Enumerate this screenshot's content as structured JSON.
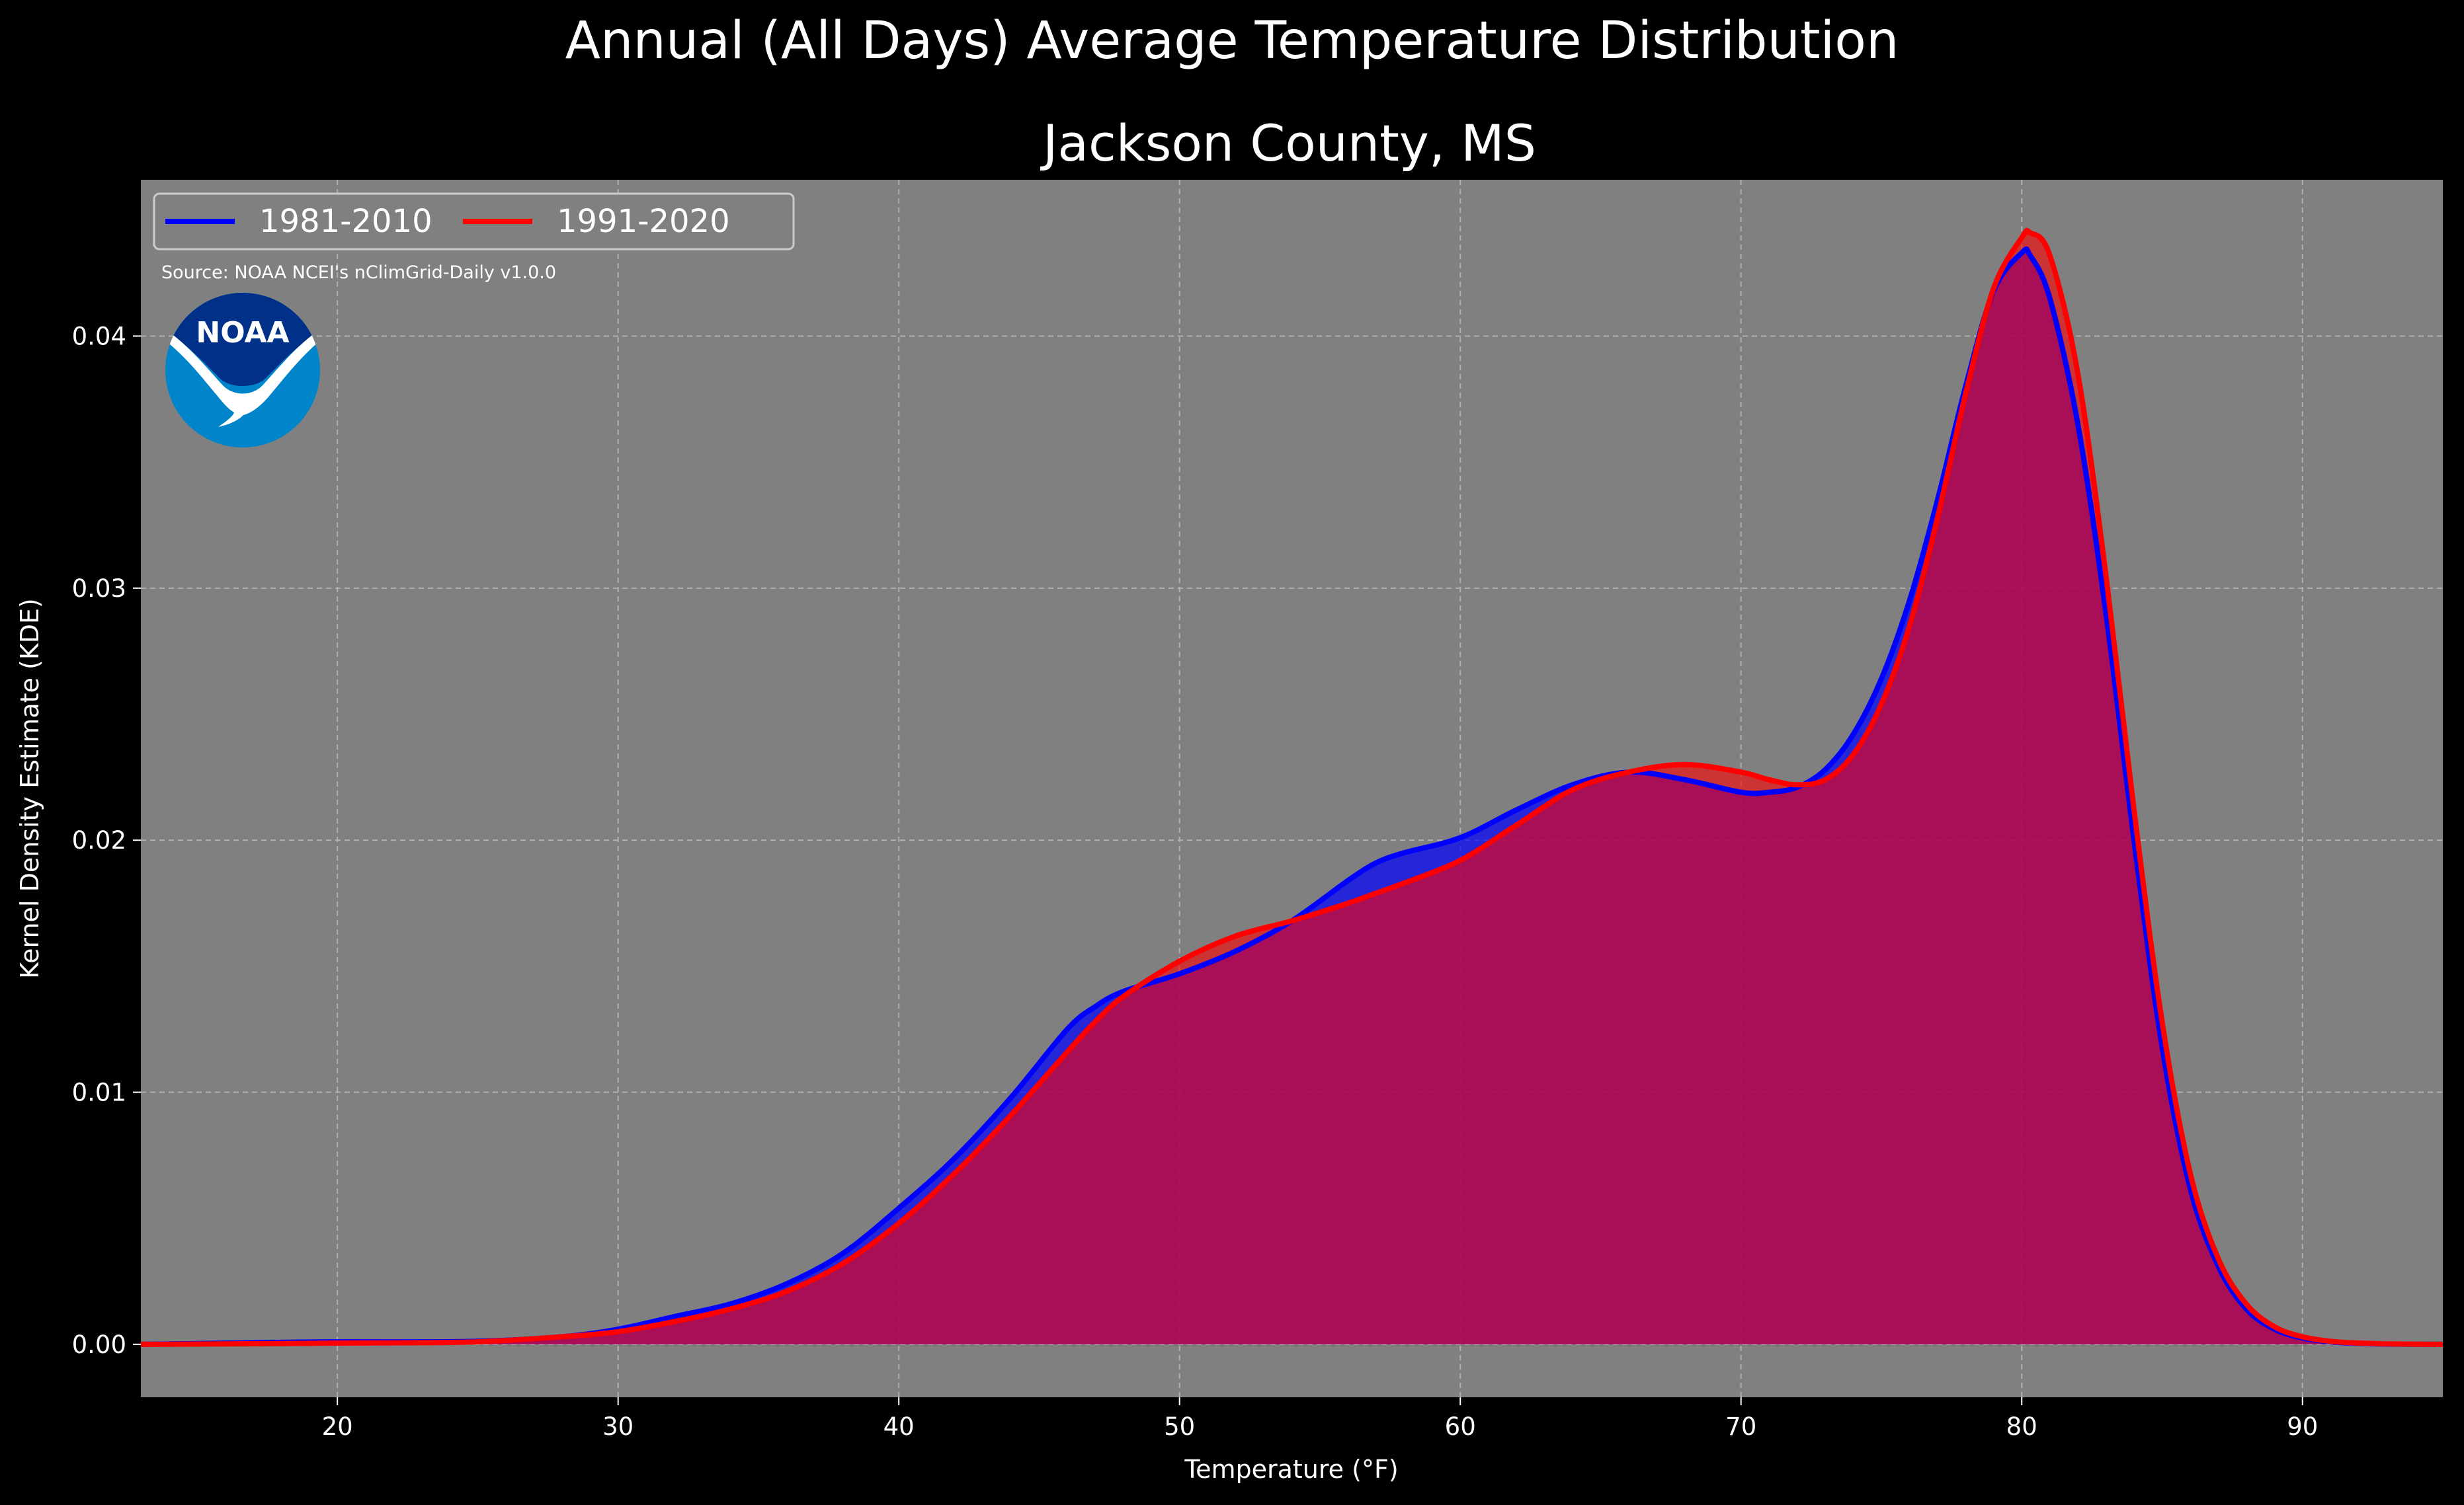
{
  "title": "Annual (All Days) Average Temperature Distribution",
  "subtitle": "Jackson County, MS",
  "source": "Source: NOAA NCEI's nClimGrid-Daily v1.0.0",
  "logo_text": "NOAA",
  "colors": {
    "background": "#000000",
    "plot_bg": "#808080",
    "series_1981": "#0000ff",
    "series_1991": "#ff0000",
    "overlap_fill": "#9e1e5f",
    "logo_blue": "#0085ca",
    "logo_navy": "#003087"
  },
  "chart_data": {
    "type": "area",
    "title": "Annual (All Days) Average Temperature Distribution",
    "subtitle": "Jackson County, MS",
    "xlabel": "Temperature (°F)",
    "ylabel": "Kernel Density Estimate (KDE)",
    "xlim": [
      13,
      95
    ],
    "ylim": [
      -0.0021,
      0.0462
    ],
    "xticks": [
      20,
      30,
      40,
      50,
      60,
      70,
      80,
      90
    ],
    "yticks": [
      0.0,
      0.01,
      0.02,
      0.03,
      0.04
    ],
    "xtick_labels": [
      "20",
      "30",
      "40",
      "50",
      "60",
      "70",
      "80",
      "90"
    ],
    "ytick_labels": [
      "0.00",
      "0.01",
      "0.02",
      "0.03",
      "0.04"
    ],
    "grid": true,
    "legend_position": "top-left",
    "series": [
      {
        "name": "1981-2010",
        "color": "#0000ff",
        "x": [
          13,
          15,
          18,
          20,
          22,
          25,
          28,
          30,
          32,
          34,
          36,
          38,
          40,
          42,
          44,
          46,
          47,
          48,
          50,
          52,
          54,
          56,
          57,
          58,
          60,
          62,
          64,
          66,
          68,
          70,
          71,
          72,
          73,
          74,
          75,
          76,
          77,
          78,
          79,
          80,
          80.3,
          81,
          82,
          83,
          84,
          85,
          86,
          87,
          88,
          89,
          90,
          91,
          92,
          93,
          95
        ],
        "y": [
          0.0,
          3e-05,
          8e-05,
          0.0001,
          0.0001,
          0.00012,
          0.0003,
          0.0006,
          0.0011,
          0.0016,
          0.0024,
          0.0036,
          0.0054,
          0.0074,
          0.0098,
          0.0125,
          0.0134,
          0.014,
          0.0147,
          0.0156,
          0.0168,
          0.0184,
          0.0191,
          0.0195,
          0.0201,
          0.0212,
          0.0222,
          0.0227,
          0.0224,
          0.0219,
          0.0219,
          0.0221,
          0.0228,
          0.0242,
          0.0264,
          0.0295,
          0.0335,
          0.038,
          0.0418,
          0.0433,
          0.0432,
          0.0415,
          0.0365,
          0.029,
          0.02,
          0.0118,
          0.0062,
          0.0031,
          0.0014,
          0.0006,
          0.00025,
          0.0001,
          4e-05,
          1e-05,
          0.0
        ]
      },
      {
        "name": "1991-2020",
        "color": "#ff0000",
        "x": [
          13,
          15,
          18,
          20,
          22,
          25,
          28,
          30,
          32,
          34,
          36,
          38,
          40,
          42,
          44,
          46,
          47,
          48,
          50,
          52,
          54,
          56,
          57,
          58,
          60,
          62,
          64,
          66,
          68,
          70,
          71,
          72,
          73,
          74,
          75,
          76,
          77,
          78,
          79,
          80,
          80.3,
          81,
          82,
          83,
          84,
          85,
          86,
          87,
          88,
          89,
          90,
          91,
          92,
          93,
          95
        ],
        "y": [
          0.0,
          1e-05,
          3e-05,
          5e-05,
          6e-05,
          0.0001,
          0.0003,
          0.0005,
          0.0009,
          0.0014,
          0.0021,
          0.0032,
          0.0048,
          0.0068,
          0.0091,
          0.0116,
          0.0128,
          0.0138,
          0.0152,
          0.0162,
          0.0168,
          0.0175,
          0.0179,
          0.0183,
          0.0192,
          0.0206,
          0.022,
          0.0227,
          0.023,
          0.0227,
          0.0224,
          0.0222,
          0.0224,
          0.0234,
          0.0254,
          0.0285,
          0.0328,
          0.0377,
          0.0419,
          0.0439,
          0.0441,
          0.0432,
          0.0385,
          0.0305,
          0.0212,
          0.0128,
          0.0068,
          0.0034,
          0.0016,
          0.0007,
          0.0003,
          0.00012,
          5e-05,
          2e-05,
          0.0
        ]
      }
    ]
  }
}
